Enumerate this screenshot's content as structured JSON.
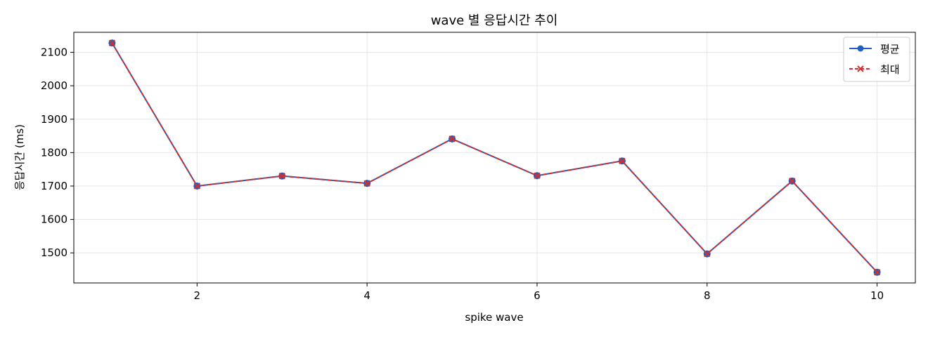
{
  "chart_data": {
    "type": "line",
    "title": "wave 별 응답시간 추이",
    "xlabel": "spike wave",
    "ylabel": "응답시간 (ms)",
    "x": [
      1,
      2,
      3,
      4,
      5,
      6,
      7,
      8,
      9,
      10
    ],
    "xlim": [
      0.55,
      10.45
    ],
    "ylim": [
      1410,
      2160
    ],
    "xticks": [
      2,
      4,
      6,
      8,
      10
    ],
    "yticks": [
      1500,
      1600,
      1700,
      1800,
      1900,
      2000,
      2100
    ],
    "grid": true,
    "legend_position": "top-right",
    "series": [
      {
        "name": "평균",
        "color": "#1f5fbf",
        "style": "solid",
        "marker": "circle",
        "values": [
          2128,
          1700,
          1730,
          1708,
          1841,
          1731,
          1775,
          1497,
          1715,
          1442
        ]
      },
      {
        "name": "최대",
        "color": "#d03030",
        "style": "dashed",
        "marker": "x",
        "values": [
          2128,
          1700,
          1730,
          1708,
          1841,
          1731,
          1775,
          1497,
          1715,
          1442
        ]
      }
    ]
  }
}
